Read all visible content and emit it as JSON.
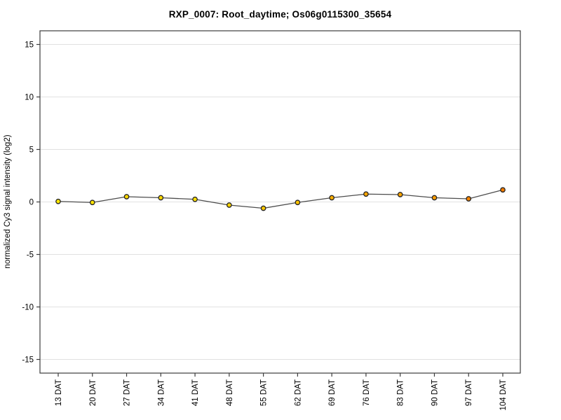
{
  "chart_data": {
    "type": "line",
    "title": "RXP_0007: Root_daytime; Os06g0115300_35654",
    "xlabel": "",
    "ylabel": "normalized Cy3 signal intensity (log2)",
    "x_categories": [
      "13 DAT",
      "20 DAT",
      "27 DAT",
      "34 DAT",
      "41 DAT",
      "48 DAT",
      "55 DAT",
      "62 DAT",
      "69 DAT",
      "76 DAT",
      "83 DAT",
      "90 DAT",
      "97 DAT",
      "104 DAT"
    ],
    "values": [
      0.05,
      -0.05,
      0.5,
      0.4,
      0.25,
      -0.3,
      -0.6,
      -0.05,
      0.4,
      0.75,
      0.7,
      0.4,
      0.3,
      1.15
    ],
    "point_colors": [
      "#ffe800",
      "#ffe300",
      "#ffd800",
      "#ffd800",
      "#ffdf00",
      "#ffd300",
      "#ffc900",
      "#ffc300",
      "#ffae00",
      "#ffa500",
      "#ffa500",
      "#ff9d00",
      "#fa8500",
      "#f27b00"
    ],
    "ylim": [
      -16.3,
      16.3
    ],
    "yticks": [
      -15,
      -10,
      -5,
      0,
      5,
      10,
      15
    ],
    "grid": "horizontal",
    "legend": "none",
    "line_color": "#4d4d4d",
    "point_border_color": "#262626",
    "grid_color": "#e1e1e1",
    "axis_color": "#3c3c3c",
    "text_color": "#000000",
    "background": "#ffffff"
  }
}
